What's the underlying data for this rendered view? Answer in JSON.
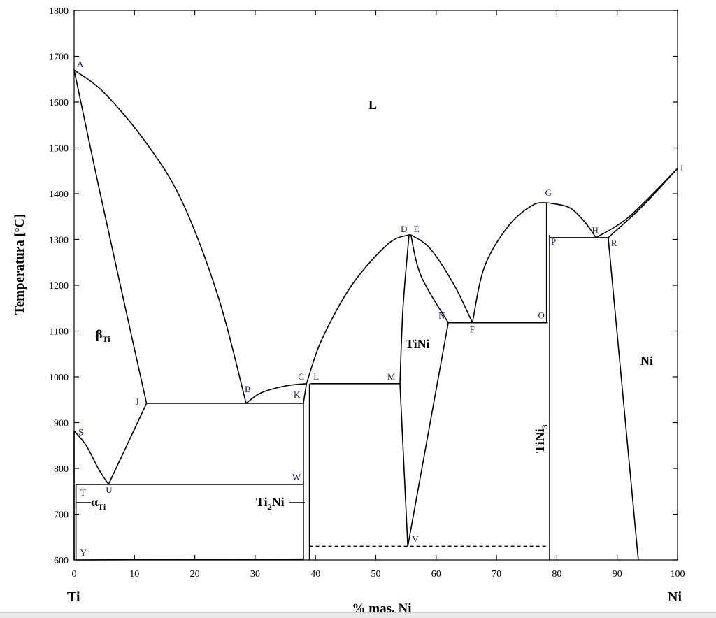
{
  "axes": {
    "x_title": "% mas. Ni",
    "y_title": "Temperatura [ºC]",
    "x_ticks": [
      "0",
      "10",
      "20",
      "30",
      "40",
      "50",
      "60",
      "70",
      "80",
      "90",
      "100"
    ],
    "y_ticks": [
      "600",
      "700",
      "800",
      "900",
      "1000",
      "1100",
      "1200",
      "1300",
      "1400",
      "1500",
      "1600",
      "1700",
      "1800"
    ],
    "x_range": [
      0,
      100
    ],
    "y_range": [
      600,
      1800
    ],
    "left_end_label": "Ti",
    "right_end_label": "Ni"
  },
  "points": [
    {
      "id": "A",
      "x": 0,
      "y": 1670
    },
    {
      "id": "B",
      "x": 28.5,
      "y": 942
    },
    {
      "id": "C",
      "x": 38.5,
      "y": 985
    },
    {
      "id": "L",
      "x": 39.2,
      "y": 985
    },
    {
      "id": "D",
      "x": 55.5,
      "y": 1310
    },
    {
      "id": "E",
      "x": 55.8,
      "y": 1310
    },
    {
      "id": "F",
      "x": 66,
      "y": 1118
    },
    {
      "id": "G",
      "x": 78.5,
      "y": 1380
    },
    {
      "id": "H",
      "x": 86.5,
      "y": 1304
    },
    {
      "id": "I",
      "x": 100,
      "y": 1455
    },
    {
      "id": "J",
      "x": 12,
      "y": 942
    },
    {
      "id": "K",
      "x": 38,
      "y": 942
    },
    {
      "id": "M",
      "x": 54,
      "y": 985
    },
    {
      "id": "N",
      "x": 62,
      "y": 1118
    },
    {
      "id": "O",
      "x": 78.5,
      "y": 1118
    },
    {
      "id": "P",
      "x": 78.8,
      "y": 1310
    },
    {
      "id": "R",
      "x": 88.5,
      "y": 1304
    },
    {
      "id": "S",
      "x": 0,
      "y": 882
    },
    {
      "id": "T",
      "x": 0.3,
      "y": 765
    },
    {
      "id": "U",
      "x": 5.7,
      "y": 765
    },
    {
      "id": "V",
      "x": 55.3,
      "y": 630
    },
    {
      "id": "W",
      "x": 38,
      "y": 765
    },
    {
      "id": "Y",
      "x": 0.3,
      "y": 600
    }
  ],
  "phases": [
    {
      "id": "L",
      "text": "L",
      "sub": ""
    },
    {
      "id": "beta",
      "text": "β",
      "sub": "Ti"
    },
    {
      "id": "alpha",
      "text": "α",
      "sub": "Ti"
    },
    {
      "id": "ti2ni",
      "text": "Ti",
      "sub": "2",
      "tail": "Ni"
    },
    {
      "id": "tini",
      "text": "TiNi",
      "sub": ""
    },
    {
      "id": "tini3",
      "text": "TiNi",
      "sub": "3"
    },
    {
      "id": "ni",
      "text": "Ni",
      "sub": ""
    }
  ]
}
